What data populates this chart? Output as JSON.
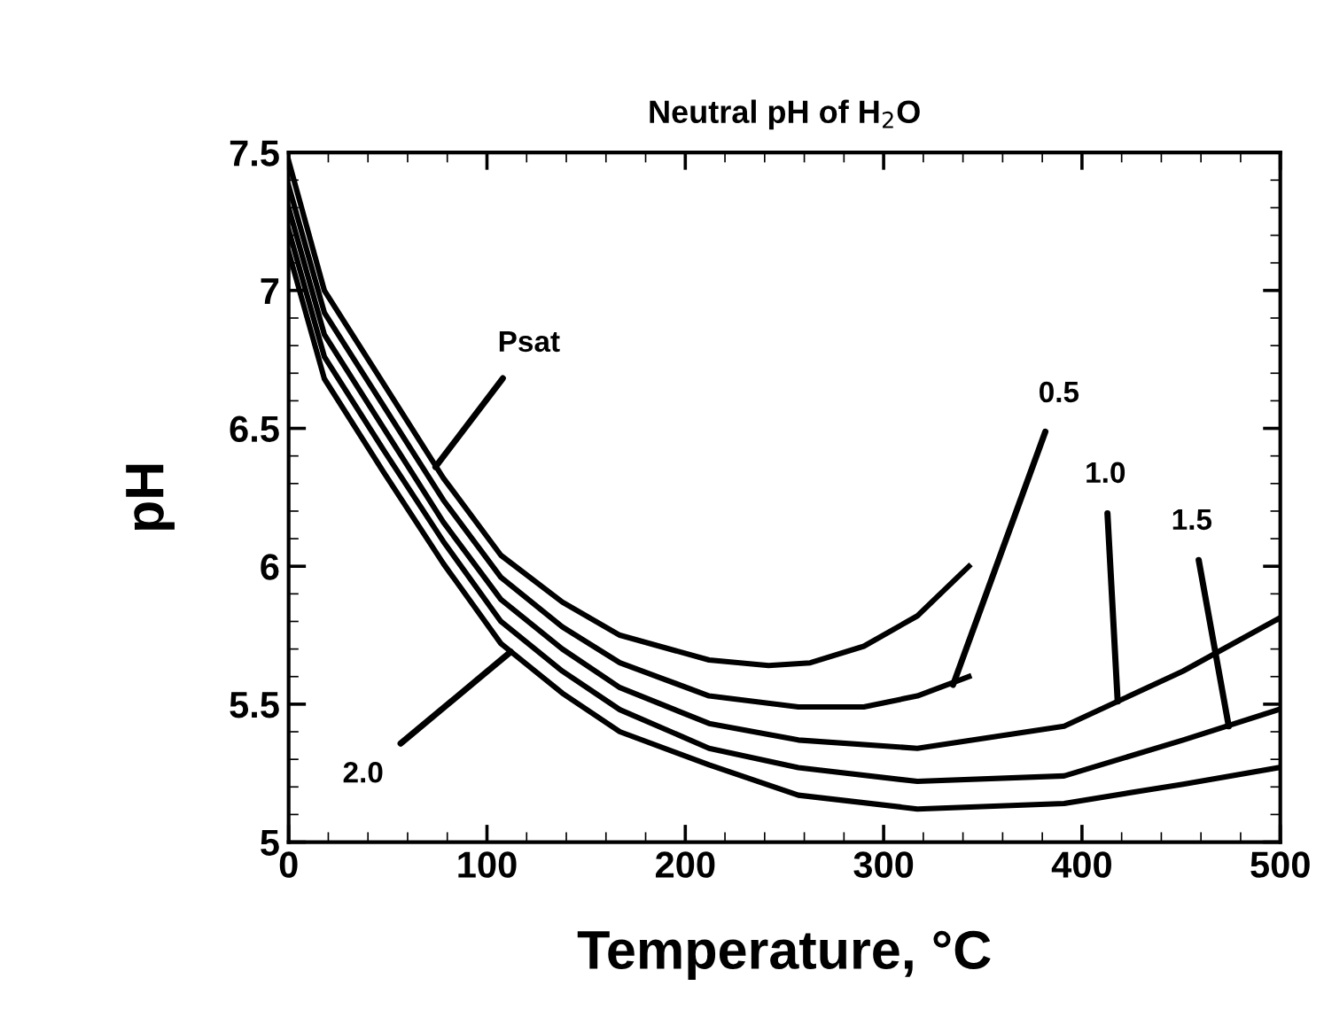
{
  "chart_data": {
    "type": "line",
    "title": "Neutral pH of H$_{2}$O",
    "xlabel": "Temperature, °C",
    "ylabel": "pH",
    "xlim": [
      0,
      500
    ],
    "ylim": [
      5,
      7.5
    ],
    "xticks": [
      0,
      100,
      200,
      300,
      400,
      500
    ],
    "yticks": [
      5,
      5.5,
      6,
      6.5,
      7,
      7.5
    ],
    "marker": "none",
    "line_style": "solid",
    "series": [
      {
        "color": "#000000",
        "x": [
          0,
          18,
          48,
          78,
          107,
          138,
          167,
          212,
          242,
          263,
          290,
          317,
          343
        ],
        "values": [
          7.47,
          7.0,
          6.66,
          6.32,
          6.04,
          5.87,
          5.75,
          5.66,
          5.64,
          5.65,
          5.71,
          5.82,
          6.0
        ]
      },
      {
        "color": "#000000",
        "x": [
          0,
          18,
          48,
          78,
          107,
          138,
          167,
          212,
          257,
          290,
          317,
          343
        ],
        "values": [
          7.38,
          6.92,
          6.58,
          6.24,
          5.96,
          5.78,
          5.65,
          5.53,
          5.49,
          5.49,
          5.53,
          5.6
        ]
      },
      {
        "color": "#000000",
        "x": [
          0,
          18,
          48,
          78,
          107,
          138,
          167,
          212,
          257,
          317,
          391,
          418,
          451,
          499
        ],
        "values": [
          7.3,
          6.84,
          6.5,
          6.16,
          5.88,
          5.7,
          5.56,
          5.43,
          5.37,
          5.34,
          5.42,
          5.51,
          5.62,
          5.81
        ]
      },
      {
        "color": "#000000",
        "x": [
          0,
          18,
          48,
          78,
          107,
          138,
          167,
          212,
          257,
          317,
          391,
          451,
          499
        ],
        "values": [
          7.22,
          6.76,
          6.42,
          6.09,
          5.8,
          5.62,
          5.48,
          5.34,
          5.27,
          5.22,
          5.24,
          5.37,
          5.48
        ]
      },
      {
        "color": "#000000",
        "x": [
          0,
          18,
          48,
          78,
          107,
          138,
          167,
          212,
          257,
          317,
          391,
          451,
          499
        ],
        "values": [
          7.14,
          6.68,
          6.34,
          6.01,
          5.72,
          5.54,
          5.4,
          5.28,
          5.17,
          5.12,
          5.14,
          5.21,
          5.27
        ]
      }
    ],
    "annotations": [
      {
        "text": "Psat",
        "x": 74,
        "y": 6.36
      },
      {
        "text": "0.5",
        "x": 335,
        "y": 5.57
      },
      {
        "text": "1.0",
        "x": 418,
        "y": 5.51
      },
      {
        "text": "1.5",
        "x": 474,
        "y": 5.42
      },
      {
        "text": "2.0",
        "x": 112,
        "y": 5.69
      }
    ]
  }
}
